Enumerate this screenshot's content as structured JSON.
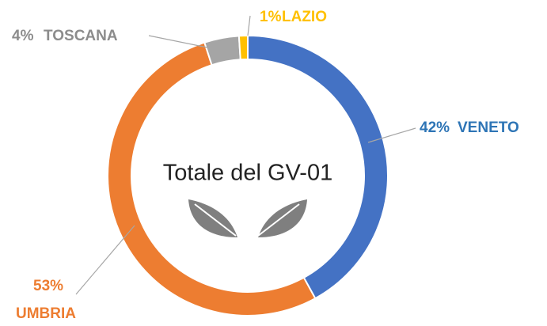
{
  "chart_data": {
    "type": "donut",
    "center_text": "Totale del GV-01",
    "categories": [
      "VENETO",
      "UMBRIA",
      "TOSCANA",
      "LAZIO"
    ],
    "values": [
      42,
      53,
      4,
      1
    ],
    "value_labels": [
      "42%",
      "53%",
      "4%",
      "1%"
    ],
    "colors": [
      "#4472c4",
      "#ed7d31",
      "#a5a5a5",
      "#ffc000"
    ],
    "label_colors": [
      "#2e75b6",
      "#ed7d31",
      "#8c8c8c",
      "#ffc000"
    ]
  }
}
